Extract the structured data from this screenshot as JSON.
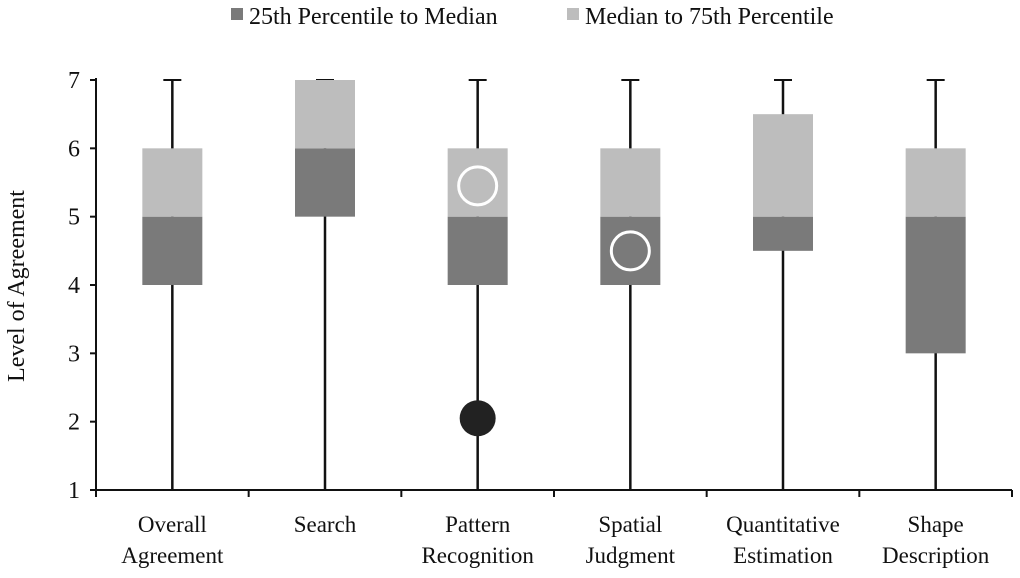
{
  "chart_data": {
    "type": "box",
    "ylabel": "Level of Agreement",
    "xlabel": "",
    "ylim": [
      1,
      7
    ],
    "yticks": [
      1,
      2,
      3,
      4,
      5,
      6,
      7
    ],
    "grid": false,
    "legend_placement": "top",
    "legend": [
      {
        "label": "25th Percentile to Median",
        "color": "#7a7a7a"
      },
      {
        "label": "Median to 75th Percentile",
        "color": "#bdbdbd"
      }
    ],
    "categories": [
      {
        "lines": [
          "Overall",
          "Agreement"
        ],
        "min": 1,
        "q1": 4,
        "median": 5,
        "q3": 6,
        "max": 7
      },
      {
        "lines": [
          "Search"
        ],
        "min": 1,
        "q1": 5,
        "median": 6,
        "q3": 7,
        "max": 7
      },
      {
        "lines": [
          "Pattern",
          "Recognition"
        ],
        "min": 1,
        "q1": 4,
        "median": 5,
        "q3": 6,
        "max": 7
      },
      {
        "lines": [
          "Spatial",
          "Judgment"
        ],
        "min": 1,
        "q1": 4,
        "median": 5,
        "q3": 6,
        "max": 7
      },
      {
        "lines": [
          "Quantitative",
          "Estimation"
        ],
        "min": 1,
        "q1": 4.5,
        "median": 5,
        "q3": 6.5,
        "max": 7
      },
      {
        "lines": [
          "Shape",
          "Description"
        ],
        "min": 1,
        "q1": 3,
        "median": 5,
        "q3": 6,
        "max": 7
      }
    ],
    "markers": [
      {
        "category": 2,
        "value": 5.45,
        "style": "hollow"
      },
      {
        "category": 3,
        "value": 4.5,
        "style": "hollow"
      },
      {
        "category": 2,
        "value": 2.05,
        "style": "filled"
      }
    ],
    "colors": {
      "lower": "#7a7a7a",
      "upper": "#bdbdbd",
      "line": "#111111",
      "filled_marker": "#222222"
    }
  }
}
